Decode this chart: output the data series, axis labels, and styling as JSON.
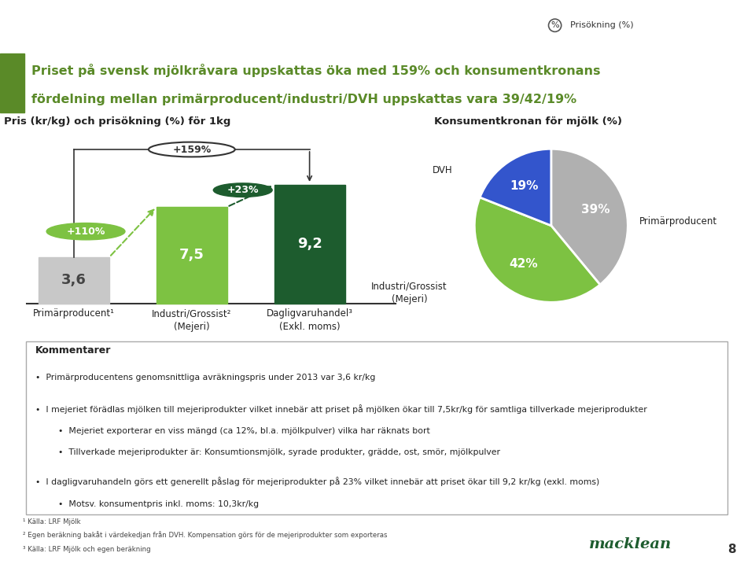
{
  "title_main": "Priset på svensk mjölkråvara uppskattas öka med 159% och konsumentkronans",
  "title_sub": "fördelning mellan primärproducent/industri/DVH uppskattas vara 39/42/19%",
  "bar_title": "Pris (kr/kg) och prisökning (%) för 1kg",
  "pie_title": "Konsumentkronan för mjölk (%)",
  "bar_values": [
    3.6,
    7.5,
    9.2
  ],
  "bar_colors": [
    "#c8c8c8",
    "#7dc242",
    "#1d5c2e"
  ],
  "bar_labels": [
    "Primärproducent¹",
    "Industri/Grossist²\n(Mejeri)",
    "Dagligvaruhandel³\n(Exkl. moms)"
  ],
  "pie_values": [
    39,
    42,
    19
  ],
  "pie_colors": [
    "#b0b0b0",
    "#7dc242",
    "#3355cc"
  ],
  "pie_labels": [
    "Primärproducent",
    "Industri/Grossist\n(Mejeri)",
    "DVH"
  ],
  "pie_pct_labels": [
    "39%",
    "42%",
    "19%"
  ],
  "header_green": "#5a8a28",
  "dark_green": "#1d5c2e",
  "light_green": "#7dc242",
  "bg_color": "#ffffff",
  "text_dark": "#222222",
  "comment_title": "Kommentarer",
  "comment_bullets": [
    "Primärproducentens genomsnittliga avräkningspris under 2013 var 3,6 kr/kg",
    "I mejeriet förädlas mjölken till mejeriprodukter vilket innebär att priset på mjölken ökar till 7,5kr/kg för samtliga tillverkade mejeriprodukter",
    "Mejeriet exporterar en viss mängd (ca 12%, bl.a. mjölkpulver) vilka har räknats bort",
    "Tillverkade mejeriprodukter är: Konsumtionsmjölk, syrade produkter, grädde, ost, smör, mjölkpulver",
    "I dagligvaruhandeln görs ett generellt påslag för mejeriprodukter på 23% vilket innebär att priset ökar till 9,2 kr/kg (exkl. moms)",
    "Motsv. konsumentpris inkl. moms: 10,3kr/kg"
  ],
  "footnotes": [
    "¹ Källa: LRF Mjölk",
    "² Egen beräkning bakåt i värdekedjan från DVH. Kompensation görs för de mejeriprodukter som exporteras",
    "³ Källa: LRF Mjölk och egen beräkning"
  ],
  "page_num": "8",
  "logo_text": "macklean",
  "prisökning_label": "Prisökning (%)"
}
